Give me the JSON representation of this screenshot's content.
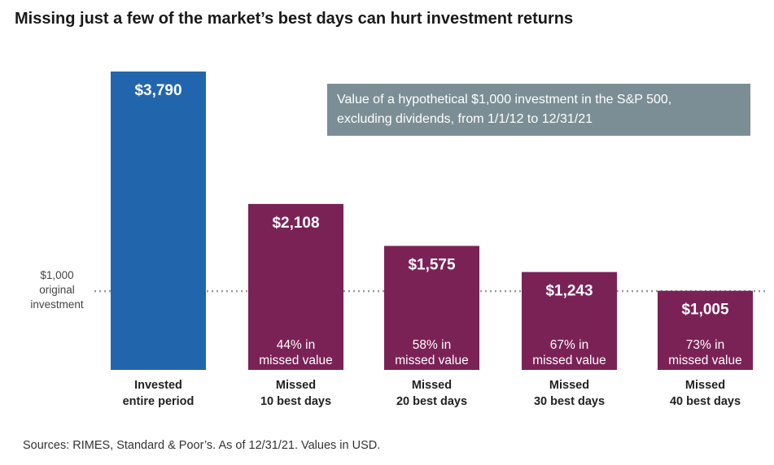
{
  "title": "Missing just a few of the market’s best days can hurt investment returns",
  "legend_box": {
    "line1": "Value of a hypothetical $1,000 investment in the S&P 500,",
    "line2": "excluding dividends, from 1/1/12 to 12/31/21"
  },
  "reference_line": {
    "value": 1000,
    "label_lines": [
      "$1,000",
      "original",
      "investment"
    ]
  },
  "source": "Sources: RIMES, Standard & Poor’s. As of 12/31/21. Values in USD.",
  "colors": {
    "invested": "#2166ad",
    "missed": "#7a2256",
    "legend_box": "#7b8e96",
    "reference_line": "#999999"
  },
  "chart_data": {
    "type": "bar",
    "title": "Missing just a few of the market’s best days can hurt investment returns",
    "xlabel": "",
    "ylabel": "",
    "ylim": [
      0,
      3790
    ],
    "grid": false,
    "categories": [
      [
        "Invested",
        "entire period"
      ],
      [
        "Missed",
        "10 best days"
      ],
      [
        "Missed",
        "20 best days"
      ],
      [
        "Missed",
        "30 best days"
      ],
      [
        "Missed",
        "40 best days"
      ]
    ],
    "values": [
      3790,
      2108,
      1575,
      1243,
      1005
    ],
    "value_labels": [
      "$3,790",
      "$2,108",
      "$1,575",
      "$1,243",
      "$1,005"
    ],
    "annotations": [
      null,
      [
        "44% in",
        "missed value"
      ],
      [
        "58% in",
        "missed value"
      ],
      [
        "67% in",
        "missed value"
      ],
      [
        "73% in",
        "missed value"
      ]
    ]
  }
}
